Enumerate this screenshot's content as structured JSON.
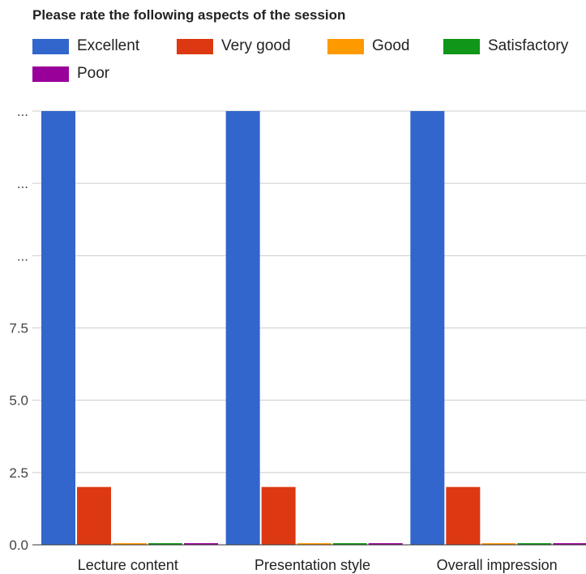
{
  "chart_data": {
    "type": "bar",
    "title": "Please rate the following aspects of the session",
    "categories": [
      "Lecture content",
      "Presentation style",
      "Overall impression"
    ],
    "series": [
      {
        "name": "Excellent",
        "color": "#3366cc",
        "values": [
          15,
          15,
          15
        ]
      },
      {
        "name": "Very good",
        "color": "#dc3912",
        "values": [
          2,
          2,
          2
        ]
      },
      {
        "name": "Good",
        "color": "#ff9900",
        "values": [
          0,
          0,
          0
        ]
      },
      {
        "name": "Satisfactory",
        "color": "#109618",
        "values": [
          0,
          0,
          0
        ]
      },
      {
        "name": "Poor",
        "color": "#990099",
        "values": [
          0,
          0,
          0
        ]
      }
    ],
    "yticks": [
      "0.0",
      "2.5",
      "5.0",
      "7.5",
      "...",
      "...",
      "..."
    ],
    "ylim": [
      0,
      15
    ],
    "grid": true,
    "legend_position": "top"
  }
}
